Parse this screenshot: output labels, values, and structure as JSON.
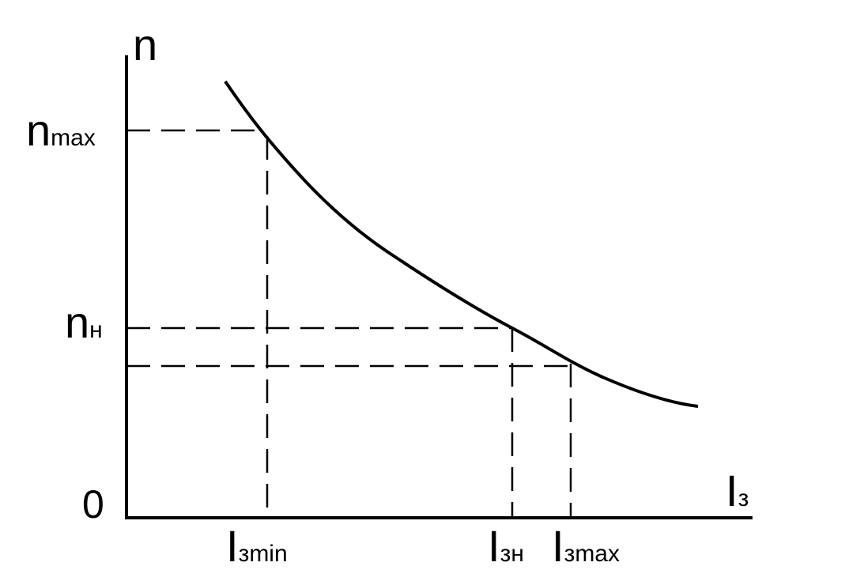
{
  "axes": {
    "y_label": "n",
    "x_label": {
      "main": "I",
      "sub": "з"
    },
    "origin": "0"
  },
  "y_marks": [
    {
      "main": "n",
      "sub": "max"
    },
    {
      "main": "n",
      "sub": "н"
    }
  ],
  "x_marks": [
    {
      "main": "I",
      "sub": "зmin"
    },
    {
      "main": "I",
      "sub": "зн"
    },
    {
      "main": "I",
      "sub": "зmax"
    }
  ]
}
